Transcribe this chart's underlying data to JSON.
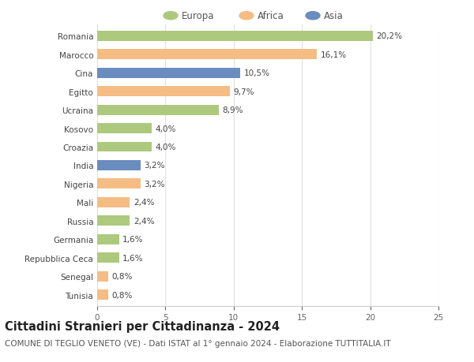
{
  "categories": [
    "Romania",
    "Marocco",
    "Cina",
    "Egitto",
    "Ucraina",
    "Kosovo",
    "Croazia",
    "India",
    "Nigeria",
    "Mali",
    "Russia",
    "Germania",
    "Repubblica Ceca",
    "Senegal",
    "Tunisia"
  ],
  "values": [
    20.2,
    16.1,
    10.5,
    9.7,
    8.9,
    4.0,
    4.0,
    3.2,
    3.2,
    2.4,
    2.4,
    1.6,
    1.6,
    0.8,
    0.8
  ],
  "continents": [
    "Europa",
    "Africa",
    "Asia",
    "Africa",
    "Europa",
    "Europa",
    "Europa",
    "Asia",
    "Africa",
    "Africa",
    "Europa",
    "Europa",
    "Europa",
    "Africa",
    "Africa"
  ],
  "labels": [
    "20,2%",
    "16,1%",
    "10,5%",
    "9,7%",
    "8,9%",
    "4,0%",
    "4,0%",
    "3,2%",
    "3,2%",
    "2,4%",
    "2,4%",
    "1,6%",
    "1,6%",
    "0,8%",
    "0,8%"
  ],
  "colors": {
    "Europa": "#adc97e",
    "Africa": "#f5bc84",
    "Asia": "#6b8cbf"
  },
  "xlim": [
    0,
    25
  ],
  "xticks": [
    0,
    5,
    10,
    15,
    20,
    25
  ],
  "title": "Cittadini Stranieri per Cittadinanza - 2024",
  "subtitle": "COMUNE DI TEGLIO VENETO (VE) - Dati ISTAT al 1° gennaio 2024 - Elaborazione TUTTITALIA.IT",
  "background_color": "#ffffff",
  "grid_color": "#e0e0e0",
  "bar_height": 0.55,
  "title_fontsize": 10.5,
  "subtitle_fontsize": 7.5,
  "label_fontsize": 7.5,
  "tick_fontsize": 7.5,
  "legend_fontsize": 8.5
}
